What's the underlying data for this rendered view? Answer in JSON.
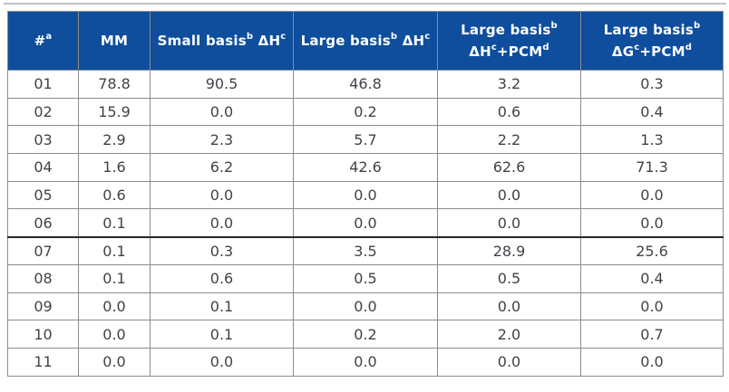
{
  "table": {
    "headers": [
      {
        "id": "num",
        "line1": "#ᵃ"
      },
      {
        "id": "mm",
        "line1": "MM"
      },
      {
        "id": "small-basis-dh",
        "line1": "Small basisᵇ ΔHᶜ"
      },
      {
        "id": "large-basis-dh",
        "line1": "Large basisᵇ ΔHᶜ"
      },
      {
        "id": "large-basis-dh-pcm",
        "line1": "Large basisᵇ",
        "line2": "ΔHᶜ+PCMᵈ"
      },
      {
        "id": "large-basis-dg-pcm",
        "line1": "Large basisᵇ",
        "line2": "ΔGᶜ+PCMᵈ"
      }
    ],
    "rows": [
      {
        "cells": [
          "01",
          "78.8",
          "90.5",
          "46.8",
          "3.2",
          "0.3"
        ]
      },
      {
        "cells": [
          "02",
          "15.9",
          "0.0",
          "0.2",
          "0.6",
          "0.4"
        ]
      },
      {
        "cells": [
          "03",
          "2.9",
          "2.3",
          "5.7",
          "2.2",
          "1.3"
        ]
      },
      {
        "cells": [
          "04",
          "1.6",
          "6.2",
          "42.6",
          "62.6",
          "71.3"
        ]
      },
      {
        "cells": [
          "05",
          "0.6",
          "0.0",
          "0.0",
          "0.0",
          "0.0"
        ]
      },
      {
        "cells": [
          "06",
          "0.1",
          "0.0",
          "0.0",
          "0.0",
          "0.0"
        ]
      },
      {
        "cells": [
          "07",
          "0.1",
          "0.3",
          "3.5",
          "28.9",
          "25.6"
        ]
      },
      {
        "cells": [
          "08",
          "0.1",
          "0.6",
          "0.5",
          "0.5",
          "0.4"
        ]
      },
      {
        "cells": [
          "09",
          "0.0",
          "0.1",
          "0.0",
          "0.0",
          "0.0"
        ]
      },
      {
        "cells": [
          "10",
          "0.0",
          "0.1",
          "0.2",
          "2.0",
          "0.7"
        ]
      },
      {
        "cells": [
          "11",
          "0.0",
          "0.0",
          "0.0",
          "0.0",
          "0.0"
        ]
      }
    ],
    "divider_before_row": "07",
    "colors": {
      "header_bg": "#0E4E9C",
      "header_text": "#FFFFFF",
      "body_text": "#3F4348",
      "grid_line": "#8C8C8C",
      "section_divider": "#262626"
    }
  }
}
